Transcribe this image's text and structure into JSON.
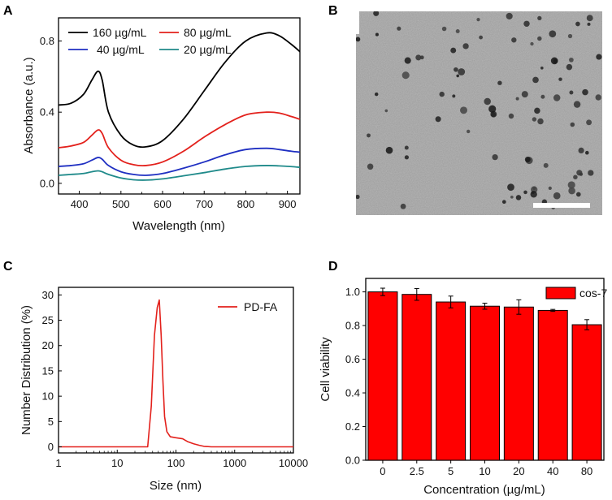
{
  "panels": {
    "a": "A",
    "b": "B",
    "c": "C",
    "d": "D"
  },
  "colors": {
    "c160": "#000000",
    "c80": "#e3211c",
    "c40": "#1f2fc2",
    "c20": "#1f8a8a",
    "bar": "#ff0000",
    "line_c": "#e3211c",
    "tem": "#9c9c9c",
    "scalebar": "#ffffff"
  },
  "chart_data": [
    {
      "type": "line",
      "panel": "A",
      "xlabel": "Wavelength (nm)",
      "ylabel": "Absorbance (a.u.)",
      "xlim": [
        350,
        930
      ],
      "ylim": [
        -0.06,
        0.93
      ],
      "xticks": [
        "400",
        "500",
        "600",
        "700",
        "800",
        "900"
      ],
      "yticks": [
        "0.0",
        "0.4",
        "0.8"
      ],
      "series": [
        {
          "name": "160 µg/mL",
          "color": "#000000",
          "x": [
            350,
            380,
            410,
            430,
            445,
            455,
            470,
            500,
            530,
            560,
            600,
            650,
            700,
            750,
            800,
            850,
            880,
            910,
            930
          ],
          "y": [
            0.44,
            0.45,
            0.5,
            0.58,
            0.63,
            0.58,
            0.4,
            0.27,
            0.215,
            0.205,
            0.24,
            0.36,
            0.52,
            0.68,
            0.8,
            0.845,
            0.83,
            0.78,
            0.74
          ]
        },
        {
          "name": "80 µg/mL",
          "color": "#e3211c",
          "x": [
            350,
            380,
            410,
            430,
            445,
            455,
            470,
            500,
            530,
            560,
            600,
            650,
            700,
            750,
            800,
            850,
            880,
            910,
            930
          ],
          "y": [
            0.2,
            0.21,
            0.23,
            0.27,
            0.3,
            0.28,
            0.2,
            0.13,
            0.105,
            0.1,
            0.12,
            0.18,
            0.26,
            0.33,
            0.385,
            0.4,
            0.395,
            0.375,
            0.36
          ]
        },
        {
          "name": "40 µg/mL",
          "color": "#1f2fc2",
          "x": [
            350,
            380,
            410,
            430,
            445,
            455,
            470,
            500,
            530,
            560,
            600,
            650,
            700,
            750,
            800,
            850,
            880,
            910,
            930
          ],
          "y": [
            0.095,
            0.1,
            0.11,
            0.13,
            0.145,
            0.135,
            0.1,
            0.065,
            0.05,
            0.045,
            0.055,
            0.085,
            0.12,
            0.16,
            0.19,
            0.197,
            0.19,
            0.18,
            0.175
          ]
        },
        {
          "name": "20 µg/mL",
          "color": "#1f8a8a",
          "x": [
            350,
            380,
            410,
            430,
            445,
            455,
            470,
            500,
            530,
            560,
            600,
            650,
            700,
            750,
            800,
            850,
            880,
            910,
            930
          ],
          "y": [
            0.045,
            0.05,
            0.055,
            0.065,
            0.07,
            0.065,
            0.05,
            0.03,
            0.02,
            0.018,
            0.025,
            0.042,
            0.06,
            0.08,
            0.095,
            0.1,
            0.098,
            0.094,
            0.09
          ]
        }
      ]
    },
    {
      "type": "line",
      "panel": "C",
      "xlabel": "Size (nm)",
      "ylabel": "Number Distribution (%)",
      "xscale": "log",
      "xlim": [
        1,
        10000
      ],
      "ylim": [
        -1.2,
        31.5
      ],
      "xticks": [
        "1",
        "10",
        "100",
        "1000",
        "10000"
      ],
      "yticks": [
        "0",
        "5",
        "10",
        "15",
        "20",
        "25",
        "30"
      ],
      "series": [
        {
          "name": "PD-FA",
          "color": "#e3211c",
          "x": [
            1,
            20,
            33,
            38,
            43,
            48,
            52,
            56,
            60,
            64,
            70,
            80,
            100,
            130,
            160,
            200,
            250,
            300,
            400,
            500,
            1000,
            10000
          ],
          "y": [
            0,
            0,
            0,
            8,
            22,
            27.5,
            29,
            22,
            13,
            6,
            3,
            2,
            1.8,
            1.6,
            1.0,
            0.6,
            0.3,
            0.1,
            0,
            0,
            0,
            0
          ]
        }
      ]
    },
    {
      "type": "bar",
      "panel": "D",
      "title": "",
      "xlabel": "Concentration (µg/mL)",
      "ylabel": "Cell viability",
      "ylim": [
        0,
        1.08
      ],
      "yticks": [
        "0.0",
        "0.2",
        "0.4",
        "0.6",
        "0.8",
        "1.0"
      ],
      "categories": [
        "0",
        "2.5",
        "5",
        "10",
        "20",
        "40",
        "80"
      ],
      "series": [
        {
          "name": "cos-7",
          "values": [
            1.0,
            0.985,
            0.94,
            0.915,
            0.91,
            0.89,
            0.805
          ],
          "errors": [
            0.022,
            0.035,
            0.035,
            0.018,
            0.043,
            0.006,
            0.03
          ]
        }
      ]
    }
  ],
  "tem_image": {
    "panel": "B"
  }
}
